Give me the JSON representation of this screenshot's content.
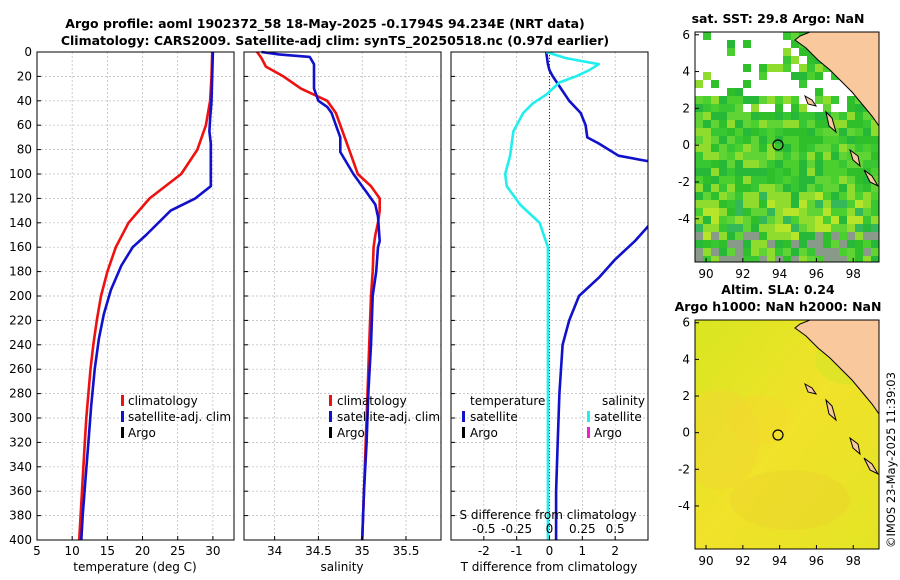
{
  "title": {
    "line1": "Argo profile: aoml 1902372_58 18-May-2025 -0.1794S 94.234E (NRT data)",
    "line2": "Climatology: CARS2009. Satellite-adj clim: synTS_20250518.nc (0.97d earlier)"
  },
  "colors": {
    "red": "#ee1111",
    "blue": "#1111cc",
    "cyan": "#22eeee",
    "magenta": "#ee22cc",
    "black": "#000000",
    "land": "#f9c89c"
  },
  "chart_data": [
    {
      "id": "temperature",
      "type": "line",
      "xlabel": "temperature (deg C)",
      "xlim": [
        5,
        33
      ],
      "ylim": [
        0,
        400
      ],
      "xticks": [
        5,
        10,
        15,
        20,
        25,
        30
      ],
      "yticks": [
        0,
        20,
        40,
        60,
        80,
        100,
        120,
        140,
        160,
        180,
        200,
        220,
        240,
        260,
        280,
        300,
        320,
        340,
        360,
        380,
        400
      ],
      "legend": [
        "climatology",
        "satellite-adj. clim",
        "Argo"
      ],
      "series": [
        {
          "name": "climatology",
          "color": "red",
          "points": [
            [
              29.9,
              0
            ],
            [
              29.8,
              20
            ],
            [
              29.6,
              40
            ],
            [
              29,
              60
            ],
            [
              27.8,
              80
            ],
            [
              25.5,
              100
            ],
            [
              21,
              120
            ],
            [
              18,
              140
            ],
            [
              16.2,
              160
            ],
            [
              15,
              180
            ],
            [
              14.1,
              200
            ],
            [
              13.5,
              220
            ],
            [
              13,
              240
            ],
            [
              12.6,
              260
            ],
            [
              12.3,
              280
            ],
            [
              12,
              300
            ],
            [
              11.8,
              320
            ],
            [
              11.6,
              340
            ],
            [
              11.4,
              360
            ],
            [
              11.2,
              380
            ],
            [
              11,
              400
            ]
          ]
        },
        {
          "name": "satellite-adj. clim",
          "color": "blue",
          "points": [
            [
              30,
              0
            ],
            [
              29.9,
              20
            ],
            [
              29.8,
              40
            ],
            [
              29.6,
              55
            ],
            [
              29.5,
              65
            ],
            [
              29.7,
              75
            ],
            [
              29.7,
              90
            ],
            [
              29.7,
              110
            ],
            [
              27.5,
              120
            ],
            [
              24,
              130
            ],
            [
              20.5,
              150
            ],
            [
              18.6,
              160
            ],
            [
              17,
              175
            ],
            [
              15.5,
              195
            ],
            [
              14.5,
              215
            ],
            [
              13.8,
              235
            ],
            [
              13.2,
              260
            ],
            [
              12.7,
              290
            ],
            [
              12.3,
              320
            ],
            [
              11.9,
              350
            ],
            [
              11.5,
              380
            ],
            [
              11.3,
              400
            ]
          ]
        }
      ]
    },
    {
      "id": "salinity",
      "type": "line",
      "xlabel": "salinity",
      "xlim": [
        33.65,
        35.9
      ],
      "ylim": [
        0,
        400
      ],
      "xticks": [
        34,
        34.5,
        35,
        35.5
      ],
      "xtick_labels": [
        "34",
        "34.5",
        "35",
        "35.5"
      ],
      "legend": [
        "climatology",
        "satellite-adj. clim",
        "Argo"
      ],
      "series": [
        {
          "name": "climatology",
          "color": "red",
          "points": [
            [
              33.8,
              0
            ],
            [
              33.85,
              5
            ],
            [
              33.9,
              12
            ],
            [
              34.1,
              20
            ],
            [
              34.3,
              30
            ],
            [
              34.6,
              40
            ],
            [
              34.7,
              50
            ],
            [
              34.75,
              60
            ],
            [
              34.85,
              80
            ],
            [
              34.95,
              100
            ],
            [
              35.1,
              110
            ],
            [
              35.2,
              120
            ],
            [
              35.2,
              130
            ],
            [
              35.18,
              140
            ],
            [
              35.15,
              150
            ],
            [
              35.13,
              160
            ],
            [
              35.12,
              180
            ],
            [
              35.1,
              200
            ],
            [
              35.08,
              240
            ],
            [
              35.06,
              280
            ],
            [
              35.04,
              320
            ],
            [
              35.02,
              360
            ],
            [
              35,
              400
            ]
          ]
        },
        {
          "name": "satellite-adj. clim",
          "color": "blue",
          "points": [
            [
              33.85,
              0
            ],
            [
              34.05,
              2
            ],
            [
              34.4,
              4
            ],
            [
              34.45,
              10
            ],
            [
              34.45,
              20
            ],
            [
              34.45,
              30
            ],
            [
              34.5,
              40
            ],
            [
              34.6,
              45
            ],
            [
              34.65,
              50
            ],
            [
              34.7,
              60
            ],
            [
              34.75,
              70
            ],
            [
              34.75,
              82
            ],
            [
              34.9,
              100
            ],
            [
              35,
              110
            ],
            [
              35.05,
              115
            ],
            [
              35.15,
              125
            ],
            [
              35.18,
              135
            ],
            [
              35.2,
              155
            ],
            [
              35.18,
              160
            ],
            [
              35.16,
              180
            ],
            [
              35.12,
              200
            ],
            [
              35.1,
              240
            ],
            [
              35.07,
              280
            ],
            [
              35.05,
              320
            ],
            [
              35.02,
              360
            ],
            [
              35,
              400
            ]
          ]
        }
      ]
    },
    {
      "id": "difference",
      "type": "line",
      "xlabel": "T difference from climatology",
      "top_xlabel": "S difference from climatology",
      "xlim": [
        -3,
        3
      ],
      "ylim": [
        0,
        400
      ],
      "xticks": [
        -2,
        -1,
        0,
        1,
        2
      ],
      "xtick_labels": [
        "-2",
        "-1",
        "0",
        "1",
        "2"
      ],
      "top_xtick_labels": [
        "-0.5",
        "-0.25",
        "0",
        "0.25",
        "0.5"
      ],
      "legend_titles": [
        "temperature",
        "salinity"
      ],
      "legend": [
        "satellite",
        "Argo",
        "satellite",
        "Argo"
      ],
      "series": [
        {
          "name": "temperature satellite",
          "color": "blue",
          "points": [
            [
              -0.1,
              0
            ],
            [
              -0.05,
              10
            ],
            [
              0,
              15
            ],
            [
              0.1,
              20
            ],
            [
              0.35,
              30
            ],
            [
              0.6,
              40
            ],
            [
              0.95,
              50
            ],
            [
              1.1,
              60
            ],
            [
              1.15,
              70
            ],
            [
              1.5,
              75
            ],
            [
              2.1,
              85
            ],
            [
              3.1,
              90
            ]
          ],
          "branch2": [
            [
              3.1,
              140
            ],
            [
              2.6,
              155
            ],
            [
              2,
              170
            ],
            [
              1.5,
              185
            ],
            [
              0.9,
              200
            ],
            [
              0.6,
              220
            ],
            [
              0.4,
              240
            ],
            [
              0.3,
              280
            ],
            [
              0.25,
              320
            ],
            [
              0.2,
              360
            ],
            [
              0.2,
              400
            ]
          ]
        },
        {
          "name": "salinity satellite",
          "color": "cyan",
          "points": [
            [
              -0.1,
              0
            ],
            [
              0.5,
              5
            ],
            [
              1.5,
              10
            ],
            [
              1.2,
              15
            ],
            [
              0.8,
              20
            ],
            [
              0.3,
              25
            ],
            [
              -0.1,
              35
            ],
            [
              -0.5,
              42
            ],
            [
              -0.8,
              50
            ],
            [
              -1.1,
              65
            ],
            [
              -1.2,
              85
            ],
            [
              -1.35,
              100
            ],
            [
              -1.3,
              110
            ],
            [
              -0.9,
              125
            ],
            [
              -0.3,
              140
            ],
            [
              -0.05,
              160
            ],
            [
              -0.05,
              200
            ],
            [
              -0.05,
              300
            ],
            [
              -0.05,
              400
            ]
          ]
        }
      ]
    }
  ],
  "maps": [
    {
      "id": "sst",
      "title": "sat. SST: 29.8 Argo: NaN",
      "xticks": [
        "90",
        "92",
        "94",
        "96",
        "98"
      ],
      "yticks": [
        "6",
        "4",
        "2",
        "0",
        "-2",
        "-4"
      ]
    },
    {
      "id": "sla",
      "title1": "Altim. SLA: 0.24",
      "title2": "Argo h1000: NaN h2000: NaN",
      "xticks": [
        "90",
        "92",
        "94",
        "96",
        "98"
      ],
      "yticks": [
        "6",
        "4",
        "2",
        "0",
        "-2",
        "-4"
      ]
    }
  ],
  "credit": "©IMOS 23-May-2025 11:39:03"
}
